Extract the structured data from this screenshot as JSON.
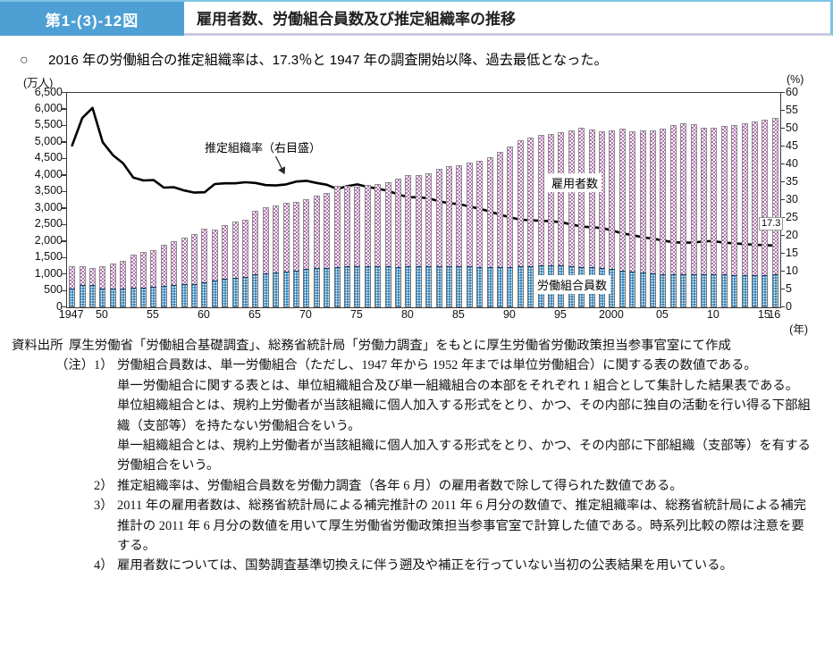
{
  "figure_header": {
    "number": "第1-(3)-12図",
    "title": "雇用者数、労働組合員数及び推定組織率の推移"
  },
  "summary": {
    "bullet": "○",
    "text": "2016 年の労働組合の推定組織率は、17.3％と 1947 年の調査開始以降、過去最低となった。"
  },
  "chart_data": {
    "type": "bar",
    "title": "雇用者数、労働組合員数及び推定組織率の推移",
    "left_axis": {
      "unit": "(万人)",
      "min": 0,
      "max": 6500,
      "step": 500,
      "tick_labels": [
        "0",
        "500",
        "1,000",
        "1,500",
        "2,000",
        "2,500",
        "3,000",
        "3,500",
        "4,000",
        "4,500",
        "5,000",
        "5,500",
        "6,000",
        "6,500"
      ]
    },
    "right_axis": {
      "unit": "(%)",
      "min": 0,
      "max": 60,
      "step": 5,
      "tick_labels": [
        "0",
        "5",
        "10",
        "15",
        "20",
        "25",
        "30",
        "35",
        "40",
        "45",
        "50",
        "55",
        "60"
      ]
    },
    "x_axis": {
      "unit": "(年)",
      "ticks": [
        {
          "label": "1947",
          "year": 1947
        },
        {
          "label": "50",
          "year": 1950
        },
        {
          "label": "55",
          "year": 1955
        },
        {
          "label": "60",
          "year": 1960
        },
        {
          "label": "65",
          "year": 1965
        },
        {
          "label": "70",
          "year": 1970
        },
        {
          "label": "75",
          "year": 1975
        },
        {
          "label": "80",
          "year": 1980
        },
        {
          "label": "85",
          "year": 1985
        },
        {
          "label": "90",
          "year": 1990
        },
        {
          "label": "95",
          "year": 1995
        },
        {
          "label": "2000",
          "year": 2000
        },
        {
          "label": "05",
          "year": 2005
        },
        {
          "label": "10",
          "year": 2010
        },
        {
          "label": "15",
          "year": 2015
        },
        {
          "label": "16",
          "year": 2016
        }
      ]
    },
    "years": [
      1947,
      1948,
      1949,
      1950,
      1951,
      1952,
      1953,
      1954,
      1955,
      1956,
      1957,
      1958,
      1959,
      1960,
      1961,
      1962,
      1963,
      1964,
      1965,
      1966,
      1967,
      1968,
      1969,
      1970,
      1971,
      1972,
      1973,
      1974,
      1975,
      1976,
      1977,
      1978,
      1979,
      1980,
      1981,
      1982,
      1983,
      1984,
      1985,
      1986,
      1987,
      1988,
      1989,
      1990,
      1991,
      1992,
      1993,
      1994,
      1995,
      1996,
      1997,
      1998,
      1999,
      2000,
      2001,
      2002,
      2003,
      2004,
      2005,
      2006,
      2007,
      2008,
      2009,
      2010,
      2011,
      2012,
      2013,
      2014,
      2015,
      2016
    ],
    "series": [
      {
        "name": "雇用者数",
        "type": "bar",
        "axis": "left",
        "unit": "万人",
        "color": "#b470b0",
        "values": [
          1256,
          1258,
          1193,
          1249,
          1337,
          1421,
          1609,
          1690,
          1739,
          1904,
          2012,
          2122,
          2212,
          2379,
          2362,
          2487,
          2588,
          2660,
          2916,
          3041,
          3100,
          3157,
          3196,
          3277,
          3391,
          3469,
          3674,
          3675,
          3660,
          3712,
          3744,
          3797,
          3896,
          4016,
          4016,
          4062,
          4188,
          4282,
          4297,
          4376,
          4446,
          4563,
          4722,
          4869,
          5061,
          5139,
          5231,
          5269,
          5298,
          5366,
          5438,
          5397,
          5329,
          5367,
          5415,
          5346,
          5372,
          5370,
          5422,
          5516,
          5569,
          5563,
          5448,
          5432,
          5503,
          5525,
          5582,
          5628,
          5678,
          5746
        ]
      },
      {
        "name": "労働組合員数",
        "type": "bar",
        "axis": "left",
        "unit": "万人",
        "color": "#1f7cba",
        "values": [
          569,
          667,
          666,
          577,
          569,
          573,
          584,
          600,
          619,
          638,
          676,
          694,
          710,
          766,
          815,
          863,
          898,
          931,
          1015,
          1040,
          1057,
          1086,
          1125,
          1160,
          1180,
          1190,
          1216,
          1246,
          1259,
          1251,
          1243,
          1238,
          1231,
          1237,
          1237,
          1239,
          1244,
          1246,
          1242,
          1234,
          1227,
          1223,
          1223,
          1227,
          1240,
          1254,
          1266,
          1270,
          1261,
          1245,
          1229,
          1209,
          1183,
          1154,
          1121,
          1080,
          1053,
          1031,
          1014,
          1004,
          1008,
          1007,
          1008,
          1005,
          996,
          989,
          988,
          985,
          988,
          994
        ]
      },
      {
        "name": "推定組織率（右目盛）",
        "type": "line",
        "axis": "right",
        "unit": "%",
        "color": "#000000",
        "values": [
          45.3,
          53.0,
          55.8,
          46.2,
          42.6,
          40.3,
          36.3,
          35.5,
          35.6,
          33.5,
          33.6,
          32.7,
          32.1,
          32.2,
          34.5,
          34.7,
          34.7,
          35.0,
          34.8,
          34.2,
          34.1,
          34.4,
          35.2,
          35.4,
          34.8,
          34.3,
          33.1,
          33.9,
          34.4,
          33.7,
          33.2,
          32.6,
          31.6,
          30.8,
          30.8,
          30.5,
          29.7,
          29.1,
          28.9,
          28.2,
          27.6,
          26.8,
          25.9,
          25.2,
          24.5,
          24.4,
          24.2,
          24.1,
          23.8,
          23.2,
          22.6,
          22.4,
          22.2,
          21.5,
          20.7,
          20.2,
          19.6,
          19.2,
          18.7,
          18.2,
          18.1,
          18.1,
          18.5,
          18.5,
          18.1,
          17.9,
          17.7,
          17.5,
          17.4,
          17.3
        ]
      }
    ],
    "annotations": {
      "line_label": "推定組織率（右目盛）",
      "employees_label": "雇用者数",
      "members_label": "労働組合員数",
      "end_value_label": "17.3"
    },
    "legend_position": "in-plot",
    "grid": false
  },
  "footer": {
    "source_label": "資料出所",
    "source_text": "厚生労働省「労働組合基礎調査」、総務省統計局「労働力調査」をもとに厚生労働省労働政策担当参事官室にて作成",
    "notes_label": "（注）",
    "notes": [
      {
        "num": "1）",
        "text": "労働組合員数は、単一労働組合（ただし、1947 年から 1952 年までは単位労働組合）に関する表の数値である。\n単一労働組合に関する表とは、単位組織組合及び単一組織組合の本部をそれぞれ 1 組合として集計した結果表である。\n単位組織組合とは、規約上労働者が当該組織に個人加入する形式をとり、かつ、その内部に独自の活動を行い得る下部組織（支部等）を持たない労働組合をいう。\n単一組織組合とは、規約上労働者が当該組織に個人加入する形式をとり、かつ、その内部に下部組織（支部等）を有する労働組合をいう。"
      },
      {
        "num": "2）",
        "text": "推定組織率は、労働組合員数を労働力調査（各年 6 月）の雇用者数で除して得られた数値である。"
      },
      {
        "num": "3）",
        "text": "2011 年の雇用者数は、総務省統計局による補完推計の 2011 年 6 月分の数値で、推定組織率は、総務省統計局による補完推計の 2011 年 6 月分の数値を用いて厚生労働省労働政策担当参事官室で計算した値である。時系列比較の際は注意を要する。"
      },
      {
        "num": "4）",
        "text": "雇用者数については、国勢調査基準切換えに伴う遡及や補正を行っていない当初の公表結果を用いている。"
      }
    ]
  },
  "colors": {
    "header_blue": "#4ea0d4",
    "header_border_blue": "#7cc4e4",
    "header_border_lavender": "#c9cade",
    "bar_employees": "#b470b0",
    "bar_members": "#1f7cba",
    "line_rate": "#000000"
  }
}
